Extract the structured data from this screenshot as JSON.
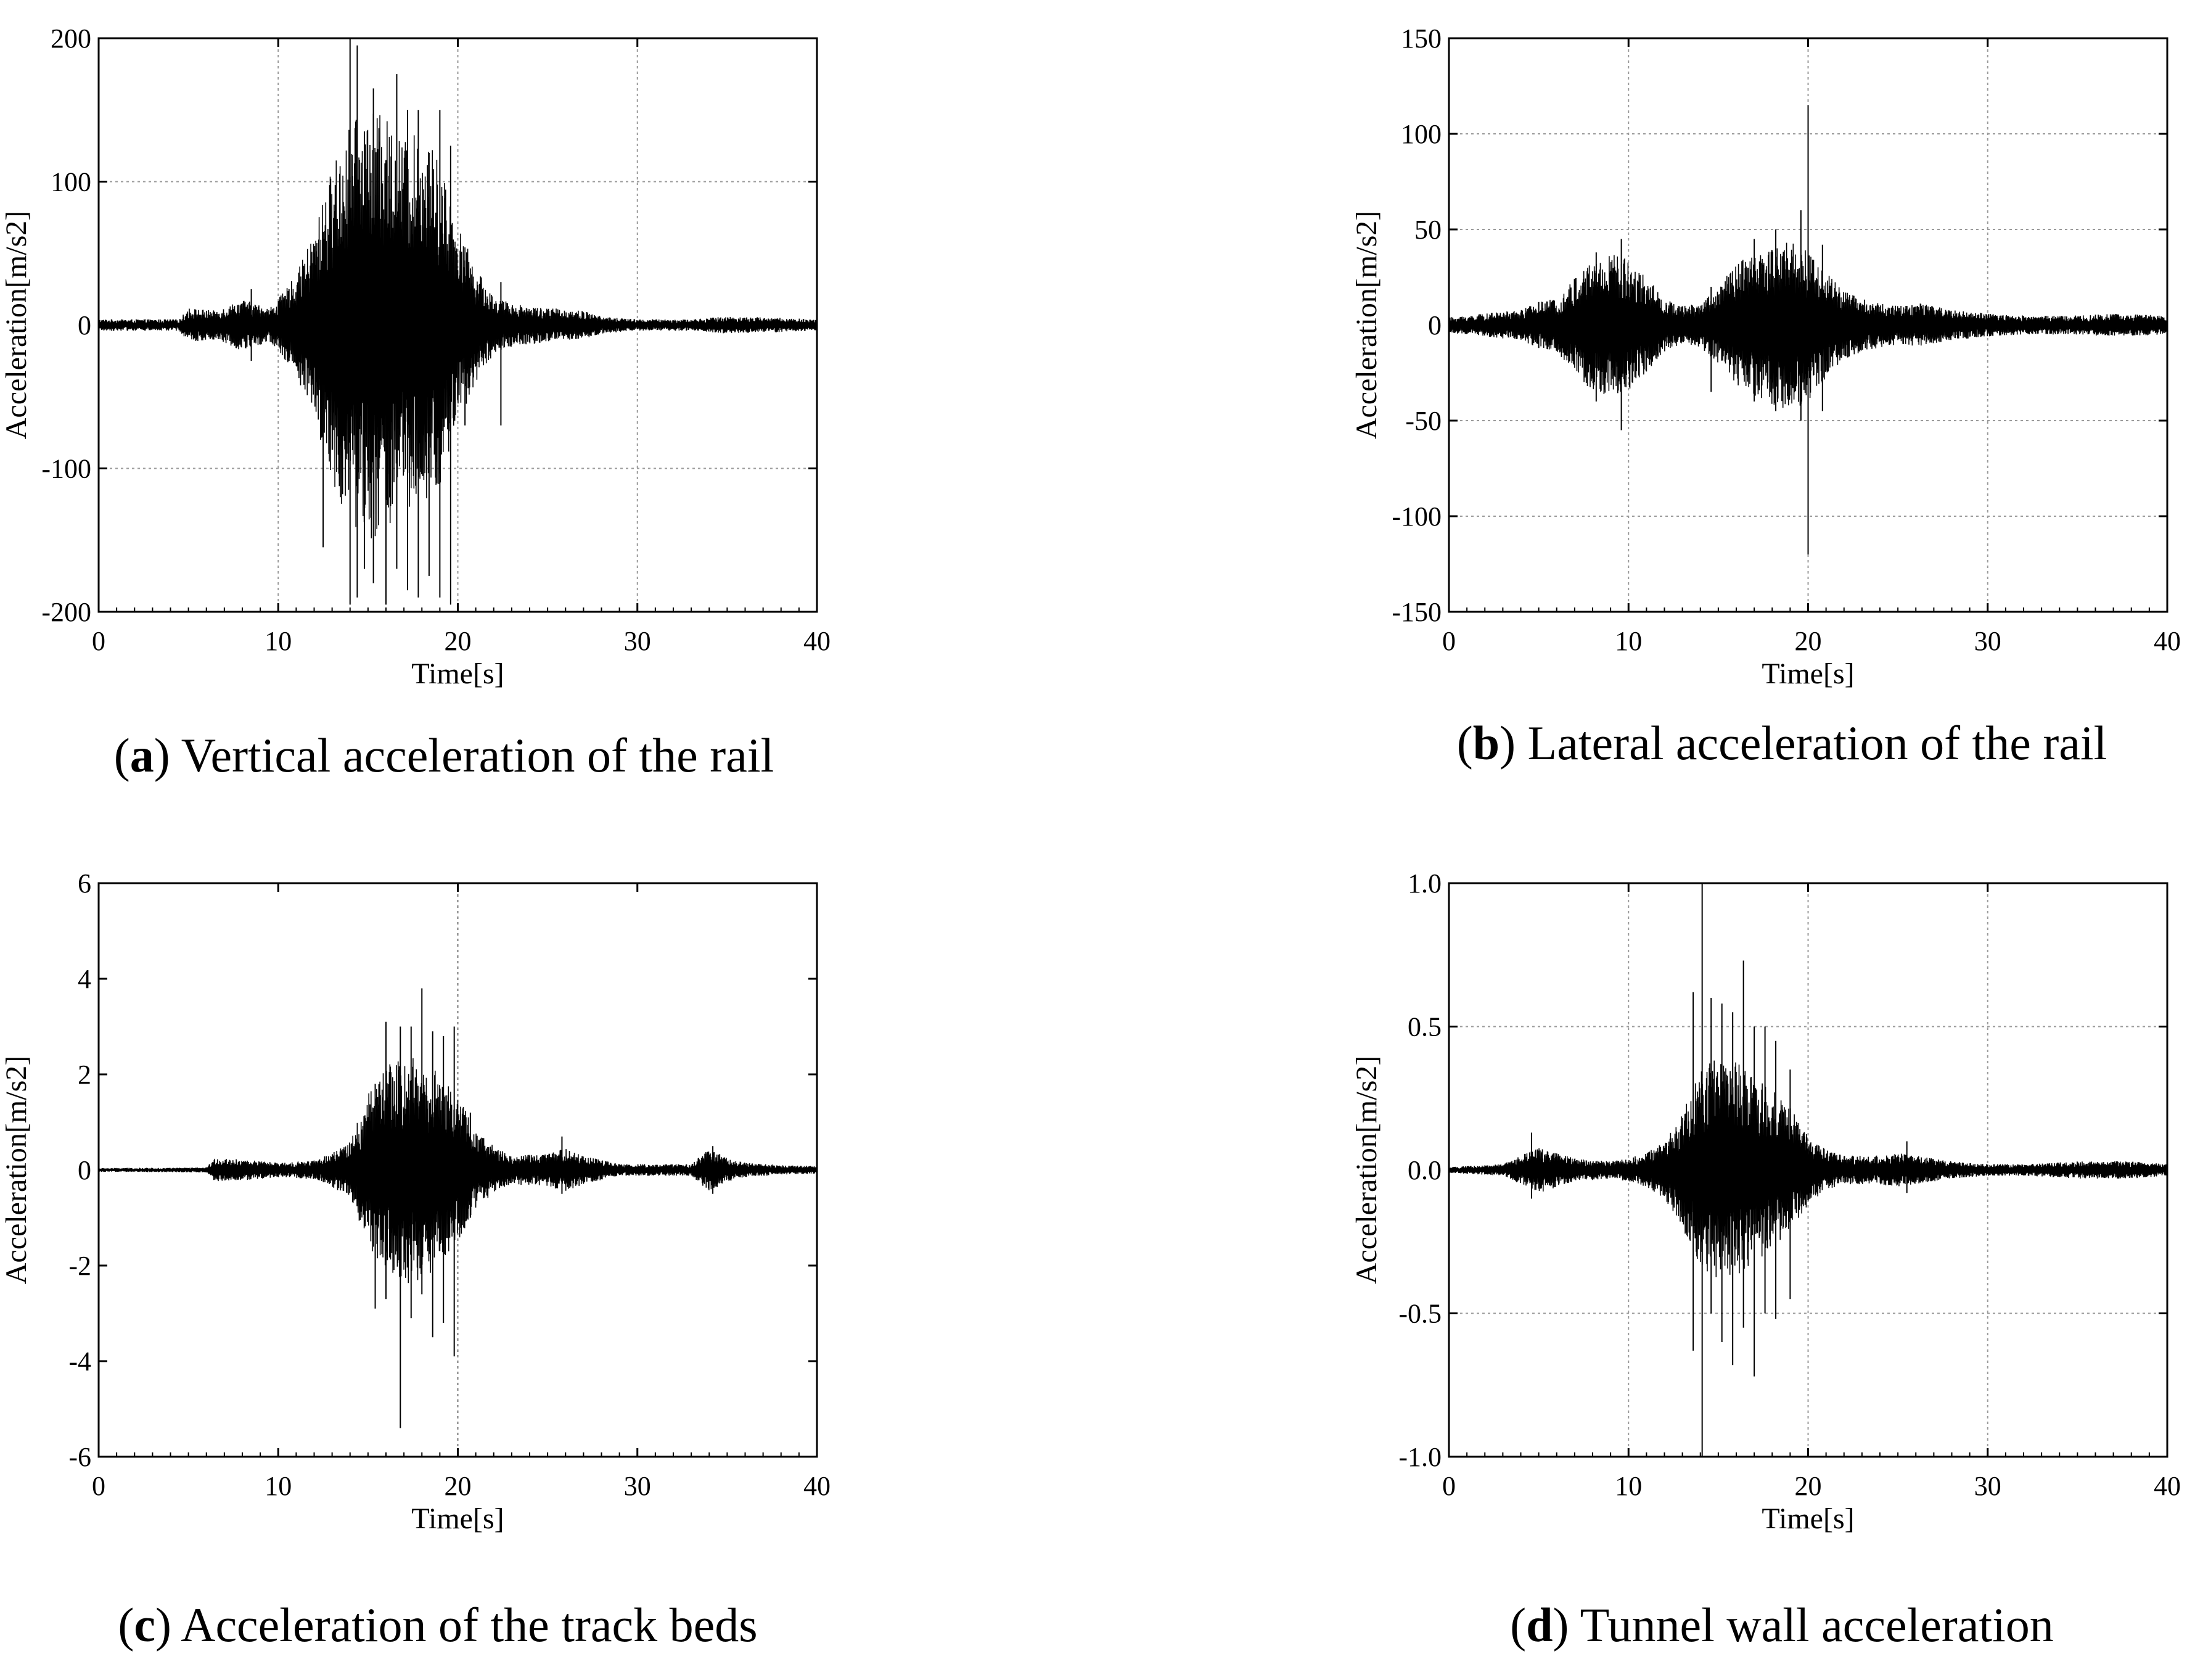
{
  "figure": {
    "panels": [
      {
        "id": "a",
        "caption_open": "(",
        "caption_letter": "a",
        "caption_text": ") Vertical acceleration of the rail",
        "grid": true
      },
      {
        "id": "b",
        "caption_open": "(",
        "caption_letter": "b",
        "caption_text": ") Lateral acceleration of the rail",
        "grid": true
      },
      {
        "id": "c",
        "caption_open": "(",
        "caption_letter": "c",
        "caption_text": ") Acceleration of the track beds",
        "grid": false
      },
      {
        "id": "d",
        "caption_open": "(",
        "caption_letter": "d",
        "caption_text": ") Tunnel wall acceleration",
        "grid": false
      }
    ]
  },
  "chart_data": [
    {
      "type": "line",
      "title": "",
      "xlabel": "Time[s]",
      "ylabel": "Acceleration[m/s2]",
      "xlim": [
        0,
        40
      ],
      "ylim": [
        -200,
        200
      ],
      "xticks": [
        "0",
        "10",
        "20",
        "30",
        "40"
      ],
      "yticks": [
        "-200",
        "-100",
        "0",
        "100",
        "200"
      ],
      "grid": true,
      "series": [
        {
          "x": [
            0,
            4.5,
            5,
            6.5,
            8,
            9.5,
            10,
            11,
            12,
            13,
            14,
            15,
            16,
            17,
            18,
            19,
            20,
            21,
            22,
            23,
            25,
            27,
            28,
            30,
            33,
            35,
            38,
            40
          ],
          "envelope": [
            4,
            4,
            12,
            10,
            18,
            12,
            18,
            35,
            65,
            110,
            140,
            150,
            145,
            130,
            135,
            115,
            70,
            40,
            20,
            15,
            12,
            10,
            6,
            4,
            4,
            6,
            5,
            4
          ],
          "spikes": [
            {
              "x": 12.5,
              "max": 65,
              "min": -155
            },
            {
              "x": 14.0,
              "max": 200,
              "min": -195
            },
            {
              "x": 14.4,
              "max": 195,
              "min": -190
            },
            {
              "x": 14.8,
              "max": 135,
              "min": -170
            },
            {
              "x": 15.3,
              "max": 165,
              "min": -180
            },
            {
              "x": 16.0,
              "max": 115,
              "min": -195
            },
            {
              "x": 16.6,
              "max": 175,
              "min": -170
            },
            {
              "x": 17.2,
              "max": 150,
              "min": -185
            },
            {
              "x": 17.8,
              "max": 150,
              "min": -190
            },
            {
              "x": 18.4,
              "max": 120,
              "min": -175
            },
            {
              "x": 19.0,
              "max": 150,
              "min": -190
            },
            {
              "x": 19.6,
              "max": 125,
              "min": -195
            },
            {
              "x": 20.4,
              "max": 45,
              "min": -70
            },
            {
              "x": 22.4,
              "max": 30,
              "min": -70
            },
            {
              "x": 10.6,
              "max": 25,
              "min": -25
            },
            {
              "x": 8.5,
              "max": 25,
              "min": -25
            }
          ]
        }
      ]
    },
    {
      "type": "line",
      "title": "",
      "xlabel": "Time[s]",
      "ylabel": "Acceleration[m/s2]",
      "xlim": [
        0,
        40
      ],
      "ylim": [
        -150,
        150
      ],
      "xticks": [
        "0",
        "10",
        "20",
        "30",
        "40"
      ],
      "yticks": [
        "-150",
        "-100",
        "-50",
        "0",
        "50",
        "100",
        "150"
      ],
      "grid": true,
      "series": [
        {
          "x": [
            0,
            2,
            4,
            5,
            6,
            7,
            8,
            9,
            10,
            11,
            12,
            13,
            14,
            15,
            16,
            17,
            18,
            19,
            20,
            21,
            22,
            23,
            25,
            26,
            28,
            30,
            32,
            35,
            37,
            40
          ],
          "envelope": [
            4,
            6,
            8,
            12,
            14,
            25,
            35,
            38,
            35,
            25,
            14,
            10,
            12,
            20,
            32,
            38,
            42,
            45,
            40,
            28,
            18,
            14,
            10,
            12,
            8,
            6,
            5,
            5,
            6,
            5
          ],
          "spikes": [
            {
              "x": 5.0,
              "max": 12,
              "min": -12
            },
            {
              "x": 9.6,
              "max": 45,
              "min": -55
            },
            {
              "x": 14.6,
              "max": 20,
              "min": -35
            },
            {
              "x": 18.2,
              "max": 50,
              "min": -45
            },
            {
              "x": 19.6,
              "max": 60,
              "min": -50
            },
            {
              "x": 20.0,
              "max": 115,
              "min": -120
            },
            {
              "x": 20.8,
              "max": 42,
              "min": -45
            },
            {
              "x": 17.0,
              "max": 45,
              "min": -40
            },
            {
              "x": 8.2,
              "max": 38,
              "min": -40
            }
          ]
        }
      ]
    },
    {
      "type": "line",
      "title": "",
      "xlabel": "Time[s]",
      "ylabel": "Acceleration[m/s2]",
      "xlim": [
        0,
        40
      ],
      "ylim": [
        -6,
        6
      ],
      "xticks": [
        "0",
        "10",
        "20",
        "30",
        "40"
      ],
      "yticks": [
        "-6",
        "-4",
        "-2",
        "0",
        "2",
        "4",
        "6"
      ],
      "grid": false,
      "vline": 20,
      "series": [
        {
          "x": [
            0,
            6,
            6.5,
            8,
            10,
            12,
            13,
            14,
            15,
            16,
            17,
            18,
            19,
            20,
            21,
            22,
            23,
            25,
            26,
            27,
            29,
            33,
            34,
            35,
            36,
            38,
            40
          ],
          "envelope": [
            0.04,
            0.05,
            0.25,
            0.22,
            0.15,
            0.2,
            0.35,
            0.6,
            1.6,
            2.2,
            2.4,
            2.3,
            2.0,
            1.6,
            0.8,
            0.5,
            0.3,
            0.35,
            0.45,
            0.3,
            0.12,
            0.12,
            0.45,
            0.25,
            0.15,
            0.1,
            0.08
          ],
          "spikes": [
            {
              "x": 15.4,
              "max": 1.8,
              "min": -2.9
            },
            {
              "x": 16.0,
              "max": 3.1,
              "min": -2.7
            },
            {
              "x": 16.8,
              "max": 3.0,
              "min": -5.4
            },
            {
              "x": 17.4,
              "max": 3.0,
              "min": -3.1
            },
            {
              "x": 18.0,
              "max": 3.8,
              "min": -2.6
            },
            {
              "x": 18.6,
              "max": 2.9,
              "min": -3.5
            },
            {
              "x": 19.2,
              "max": 2.8,
              "min": -3.2
            },
            {
              "x": 19.8,
              "max": 3.0,
              "min": -3.9
            },
            {
              "x": 20.7,
              "max": 1.2,
              "min": -1.0
            },
            {
              "x": 25.8,
              "max": 0.7,
              "min": -0.5
            },
            {
              "x": 34.2,
              "max": 0.5,
              "min": -0.5
            }
          ]
        }
      ]
    },
    {
      "type": "line",
      "title": "",
      "xlabel": "Time[s]",
      "ylabel": "Acceleration[m/s2]",
      "xlim": [
        0,
        40
      ],
      "ylim": [
        -1.0,
        1.0
      ],
      "xticks": [
        "0",
        "10",
        "20",
        "30",
        "40"
      ],
      "yticks": [
        "-1.0",
        "-0.5",
        "0.0",
        "0.5",
        "1.0"
      ],
      "grid": true,
      "series": [
        {
          "x": [
            0,
            3,
            4,
            5,
            6,
            7,
            9,
            10,
            11,
            12,
            13,
            14,
            15,
            16,
            17,
            18,
            19,
            20,
            21,
            22,
            24,
            25,
            26,
            28,
            30,
            32,
            35,
            38,
            40
          ],
          "envelope": [
            0.01,
            0.02,
            0.05,
            0.08,
            0.06,
            0.04,
            0.03,
            0.04,
            0.06,
            0.1,
            0.2,
            0.35,
            0.4,
            0.38,
            0.32,
            0.28,
            0.22,
            0.12,
            0.07,
            0.05,
            0.05,
            0.06,
            0.05,
            0.03,
            0.02,
            0.02,
            0.03,
            0.03,
            0.02
          ],
          "spikes": [
            {
              "x": 13.6,
              "max": 0.62,
              "min": -0.63
            },
            {
              "x": 14.1,
              "max": 1.0,
              "min": -1.0
            },
            {
              "x": 14.6,
              "max": 0.6,
              "min": -0.5
            },
            {
              "x": 15.2,
              "max": 0.58,
              "min": -0.6
            },
            {
              "x": 15.8,
              "max": 0.55,
              "min": -0.68
            },
            {
              "x": 16.4,
              "max": 0.73,
              "min": -0.55
            },
            {
              "x": 17.0,
              "max": 0.5,
              "min": -0.72
            },
            {
              "x": 17.6,
              "max": 0.5,
              "min": -0.5
            },
            {
              "x": 18.2,
              "max": 0.45,
              "min": -0.52
            },
            {
              "x": 19.0,
              "max": 0.35,
              "min": -0.45
            },
            {
              "x": 4.6,
              "max": 0.13,
              "min": -0.1
            },
            {
              "x": 25.5,
              "max": 0.1,
              "min": -0.08
            }
          ]
        }
      ]
    }
  ]
}
